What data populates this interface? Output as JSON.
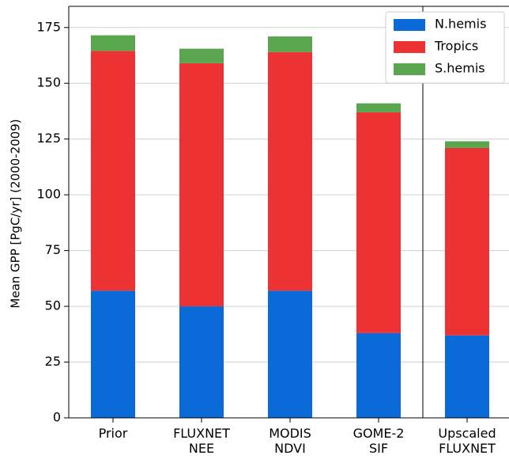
{
  "chart_data": {
    "type": "stacked_bar",
    "y_label": "Mean GPP [PgC/yr] (2000-2009)",
    "categories": [
      "Prior",
      "FLUXNET\nNEE",
      "MODIS\nNDVI",
      "GOME-2\nSIF",
      "Upscaled\nFLUXNET"
    ],
    "series": [
      {
        "name": "N.hemis",
        "color": "#0a6ad8",
        "values": [
          57,
          50,
          57,
          38,
          37
        ]
      },
      {
        "name": "Tropics",
        "color": "#ec3232",
        "values": [
          107.5,
          109,
          107,
          99,
          84
        ]
      },
      {
        "name": "S.hemis",
        "color": "#5aa64f",
        "values": [
          7,
          6.5,
          7,
          4,
          3
        ]
      }
    ],
    "ylim": [
      0,
      184.5
    ],
    "yticks": [
      0,
      25,
      50,
      75,
      100,
      125,
      150,
      175
    ],
    "grid": true,
    "legend": "upper-right"
  }
}
